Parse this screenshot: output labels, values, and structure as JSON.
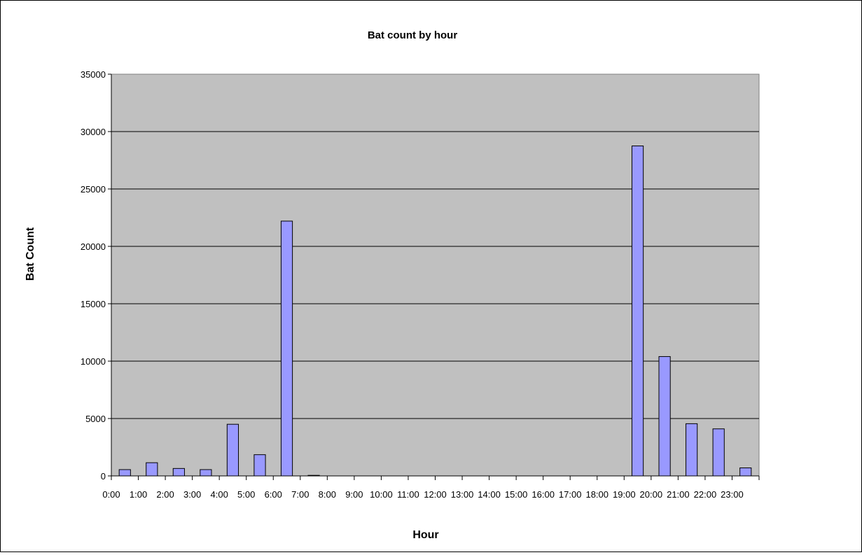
{
  "chart_data": {
    "type": "bar",
    "title": "Bat count by hour",
    "xlabel": "Hour",
    "ylabel": "Bat Count",
    "ylim": [
      0,
      35000
    ],
    "yticks": [
      0,
      5000,
      10000,
      15000,
      20000,
      25000,
      30000,
      35000
    ],
    "categories": [
      "0:00",
      "1:00",
      "2:00",
      "3:00",
      "4:00",
      "5:00",
      "6:00",
      "7:00",
      "8:00",
      "9:00",
      "10:00",
      "11:00",
      "12:00",
      "13:00",
      "14:00",
      "15:00",
      "16:00",
      "17:00",
      "18:00",
      "19:00",
      "20:00",
      "21:00",
      "22:00",
      "23:00"
    ],
    "values": [
      550,
      1150,
      650,
      550,
      4500,
      1850,
      22200,
      50,
      0,
      0,
      0,
      0,
      0,
      0,
      0,
      0,
      0,
      0,
      0,
      28750,
      10400,
      4550,
      4100,
      700
    ],
    "grid": true,
    "legend": "none"
  },
  "colors": {
    "plot_background": "#c0c0c0",
    "bar_fill": "#9999ff",
    "bar_stroke": "#000000",
    "gridline": "#000000"
  }
}
